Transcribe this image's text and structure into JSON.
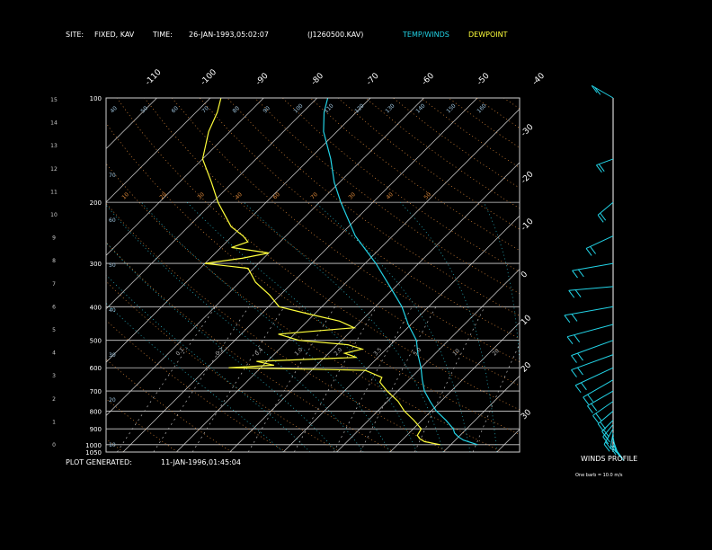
{
  "header": {
    "site_label": "SITE:",
    "site_value": "FIXED, KAV",
    "time_label": "TIME:",
    "time_value": "26-JAN-1993,05:02:07",
    "file_value": "(J1260500.KAV)",
    "temp_legend": "TEMP/WINDS",
    "dew_legend": "DEWPOINT"
  },
  "footer": {
    "generated_label": "PLOT GENERATED:",
    "generated_value": "11-JAN-1996,01:45:04",
    "winds_title": "WINDS PROFILE",
    "winds_note": "One barb = 10.0 m/s"
  },
  "colors": {
    "temp": "#22d3e6",
    "dewpoint": "#ffff3a",
    "grid": "#cfcfcf",
    "isotherm": "#d8d8d8",
    "dry_adiabat": "#e08a3a",
    "moist_adiabat": "#2bbfcf",
    "mixing_ratio": "#b8b8b8"
  },
  "chart_data": {
    "type": "line",
    "title": "",
    "ylabel_left": "km",
    "y_scale": "log-pressure",
    "pressure_ticks": [
      "100",
      "200",
      "300",
      "400",
      "500",
      "600",
      "700",
      "800",
      "900",
      "1000",
      "1050"
    ],
    "pressure_values": [
      100,
      200,
      300,
      400,
      500,
      600,
      700,
      800,
      900,
      1000,
      1050
    ],
    "height_ticks": [
      "0",
      "1",
      "2",
      "3",
      "4",
      "5",
      "6",
      "7",
      "8",
      "9",
      "10",
      "11",
      "12",
      "13",
      "14",
      "15"
    ],
    "top_temp_ticks": [
      "-110",
      "-100",
      "-90",
      "-80",
      "-70",
      "-60",
      "-50",
      "-40"
    ],
    "right_temp_ticks": [
      "-30",
      "-20",
      "-10",
      "0",
      "10",
      "20",
      "30"
    ],
    "theta_labels": [
      "40",
      "50",
      "60",
      "70",
      "80",
      "90",
      "100",
      "110",
      "120",
      "130",
      "140",
      "150",
      "160"
    ],
    "dry_labels": [
      "10",
      "20",
      "30",
      "40",
      "60",
      "70",
      "30",
      "40",
      "50"
    ],
    "mixing_labels": [
      "0.1",
      "0.2",
      "0.4",
      "1.0",
      "2.0",
      "3.5",
      "5.0",
      "10",
      "20"
    ],
    "side_labels": [
      "10",
      "20",
      "30",
      "40",
      "50",
      "60",
      "70"
    ],
    "temperature": [
      {
        "p": 1000,
        "t": 25.0
      },
      {
        "p": 970,
        "t": 21.5
      },
      {
        "p": 950,
        "t": 20.0
      },
      {
        "p": 925,
        "t": 18.5
      },
      {
        "p": 900,
        "t": 17.5
      },
      {
        "p": 850,
        "t": 14.5
      },
      {
        "p": 800,
        "t": 11.0
      },
      {
        "p": 750,
        "t": 8.0
      },
      {
        "p": 700,
        "t": 5.0
      },
      {
        "p": 650,
        "t": 2.5
      },
      {
        "p": 600,
        "t": 0.0
      },
      {
        "p": 550,
        "t": -3.0
      },
      {
        "p": 500,
        "t": -6.0
      },
      {
        "p": 450,
        "t": -10.5
      },
      {
        "p": 400,
        "t": -15.0
      },
      {
        "p": 350,
        "t": -21.0
      },
      {
        "p": 300,
        "t": -28.0
      },
      {
        "p": 250,
        "t": -37.0
      },
      {
        "p": 200,
        "t": -46.0
      },
      {
        "p": 175,
        "t": -51.0
      },
      {
        "p": 150,
        "t": -56.0
      },
      {
        "p": 125,
        "t": -62.5
      },
      {
        "p": 110,
        "t": -66.0
      },
      {
        "p": 100,
        "t": -68.0
      }
    ],
    "dewpoint": [
      {
        "p": 1000,
        "t": 18.0
      },
      {
        "p": 980,
        "t": 14.5
      },
      {
        "p": 960,
        "t": 13.0
      },
      {
        "p": 940,
        "t": 12.0
      },
      {
        "p": 900,
        "t": 11.5
      },
      {
        "p": 850,
        "t": 8.5
      },
      {
        "p": 800,
        "t": 5.0
      },
      {
        "p": 750,
        "t": 2.0
      },
      {
        "p": 700,
        "t": -2.0
      },
      {
        "p": 660,
        "t": -5.0
      },
      {
        "p": 640,
        "t": -5.5
      },
      {
        "p": 610,
        "t": -10.0
      },
      {
        "p": 600,
        "t": -36.0
      },
      {
        "p": 590,
        "t": -28.0
      },
      {
        "p": 575,
        "t": -32.0
      },
      {
        "p": 560,
        "t": -14.0
      },
      {
        "p": 545,
        "t": -17.0
      },
      {
        "p": 530,
        "t": -14.5
      },
      {
        "p": 515,
        "t": -18.0
      },
      {
        "p": 500,
        "t": -28.0
      },
      {
        "p": 480,
        "t": -33.0
      },
      {
        "p": 460,
        "t": -20.0
      },
      {
        "p": 440,
        "t": -24.0
      },
      {
        "p": 420,
        "t": -31.0
      },
      {
        "p": 400,
        "t": -38.0
      },
      {
        "p": 370,
        "t": -42.0
      },
      {
        "p": 340,
        "t": -47.0
      },
      {
        "p": 310,
        "t": -51.0
      },
      {
        "p": 300,
        "t": -60.0
      },
      {
        "p": 290,
        "t": -54.0
      },
      {
        "p": 280,
        "t": -50.0
      },
      {
        "p": 270,
        "t": -58.0
      },
      {
        "p": 260,
        "t": -56.0
      },
      {
        "p": 250,
        "t": -58.0
      },
      {
        "p": 235,
        "t": -62.0
      },
      {
        "p": 200,
        "t": -69.0
      },
      {
        "p": 175,
        "t": -74.0
      },
      {
        "p": 150,
        "t": -80.0
      },
      {
        "p": 125,
        "t": -84.0
      },
      {
        "p": 110,
        "t": -86.0
      },
      {
        "p": 100,
        "t": -88.0
      }
    ],
    "winds": [
      {
        "p": 1000,
        "speed": 10,
        "dir": 150
      },
      {
        "p": 970,
        "speed": 12,
        "dir": 160
      },
      {
        "p": 950,
        "speed": 14,
        "dir": 170
      },
      {
        "p": 925,
        "speed": 15,
        "dir": 190
      },
      {
        "p": 900,
        "speed": 18,
        "dir": 210
      },
      {
        "p": 875,
        "speed": 16,
        "dir": 220
      },
      {
        "p": 850,
        "speed": 16,
        "dir": 225
      },
      {
        "p": 800,
        "speed": 20,
        "dir": 230
      },
      {
        "p": 750,
        "speed": 25,
        "dir": 235
      },
      {
        "p": 700,
        "speed": 30,
        "dir": 240
      },
      {
        "p": 650,
        "speed": 35,
        "dir": 240
      },
      {
        "p": 600,
        "speed": 42,
        "dir": 245
      },
      {
        "p": 550,
        "speed": 45,
        "dir": 250
      },
      {
        "p": 500,
        "speed": 45,
        "dir": 250
      },
      {
        "p": 450,
        "speed": 48,
        "dir": 255
      },
      {
        "p": 400,
        "speed": 50,
        "dir": 260
      },
      {
        "p": 350,
        "speed": 45,
        "dir": 265
      },
      {
        "p": 300,
        "speed": 42,
        "dir": 260
      },
      {
        "p": 250,
        "speed": 30,
        "dir": 245
      },
      {
        "p": 200,
        "speed": 20,
        "dir": 230
      },
      {
        "p": 150,
        "speed": 18,
        "dir": 250
      },
      {
        "p": 100,
        "speed": 25,
        "dir": 300
      }
    ]
  }
}
